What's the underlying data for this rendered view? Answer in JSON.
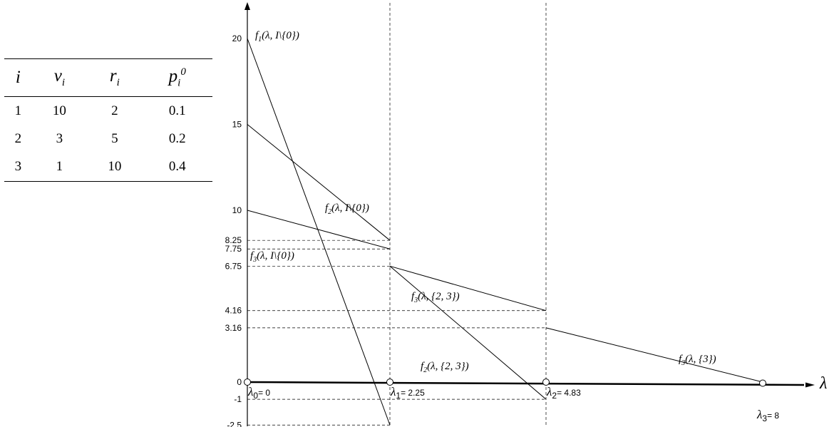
{
  "table": {
    "headers": [
      {
        "base": "i",
        "sub": "",
        "sup": ""
      },
      {
        "base": "ν",
        "sub": "i",
        "sup": ""
      },
      {
        "base": "r",
        "sub": "i",
        "sup": ""
      },
      {
        "base": "p",
        "sub": "i",
        "sup": "0"
      }
    ],
    "rows": [
      [
        "1",
        "10",
        "2",
        "0.1"
      ],
      [
        "2",
        "3",
        "5",
        "0.2"
      ],
      [
        "3",
        "1",
        "10",
        "0.4"
      ]
    ]
  },
  "chart_data": {
    "type": "line",
    "x_axis_label": "λ",
    "y_ticks": [
      {
        "value": 20,
        "label": "20"
      },
      {
        "value": 15,
        "label": "15"
      },
      {
        "value": 10,
        "label": "10"
      },
      {
        "value": 8.25,
        "label": "8.25"
      },
      {
        "value": 7.75,
        "label": "7.75"
      },
      {
        "value": 6.75,
        "label": "6.75"
      },
      {
        "value": 4.16,
        "label": "4.16"
      },
      {
        "value": 3.16,
        "label": "3.16"
      },
      {
        "value": 0,
        "label": "0"
      },
      {
        "value": -1,
        "label": "-1"
      },
      {
        "value": -2.5,
        "label": "-2.5"
      }
    ],
    "breakpoints": [
      {
        "x": 0,
        "sym": "λ",
        "sub": "0",
        "value_text": "= 0"
      },
      {
        "x": 2.25,
        "sym": "λ",
        "sub": "1",
        "value_text": "= 2.25"
      },
      {
        "x": 4.83,
        "sym": "λ",
        "sub": "2",
        "value_text": "= 4.83"
      },
      {
        "x": 8,
        "sym": "λ",
        "sub": "3",
        "value_text": "= 8"
      }
    ],
    "series": [
      {
        "name": "f1(λ, I\\{0})",
        "f": "f",
        "sub": "1",
        "args": "(λ, I\\{0})",
        "x": [
          0,
          2.25
        ],
        "y": [
          20,
          -2.5
        ]
      },
      {
        "name": "f2(λ, I\\{0})",
        "f": "f",
        "sub": "2",
        "args": "(λ, I\\{0})",
        "x": [
          0,
          2.25
        ],
        "y": [
          15,
          8.25
        ]
      },
      {
        "name": "f3(λ, I\\{0})",
        "f": "f",
        "sub": "3",
        "args": "(λ, I\\{0})",
        "x": [
          0,
          2.25
        ],
        "y": [
          10,
          7.75
        ]
      },
      {
        "name": "f3(λ, {2,3})",
        "f": "f",
        "sub": "3",
        "args": "(λ, {2, 3})",
        "x": [
          2.25,
          4.83
        ],
        "y": [
          6.75,
          4.16
        ]
      },
      {
        "name": "f2(λ, {2,3})",
        "f": "f",
        "sub": "2",
        "args": "(λ, {2, 3})",
        "x": [
          2.25,
          4.83
        ],
        "y": [
          6.75,
          -1
        ]
      },
      {
        "name": "f3(λ, {3})",
        "f": "f",
        "sub": "3",
        "args": "(λ, {3})",
        "x": [
          4.83,
          8
        ],
        "y": [
          3.16,
          0
        ]
      }
    ],
    "grid": "dashed guides at y tick values and breakpoints"
  }
}
